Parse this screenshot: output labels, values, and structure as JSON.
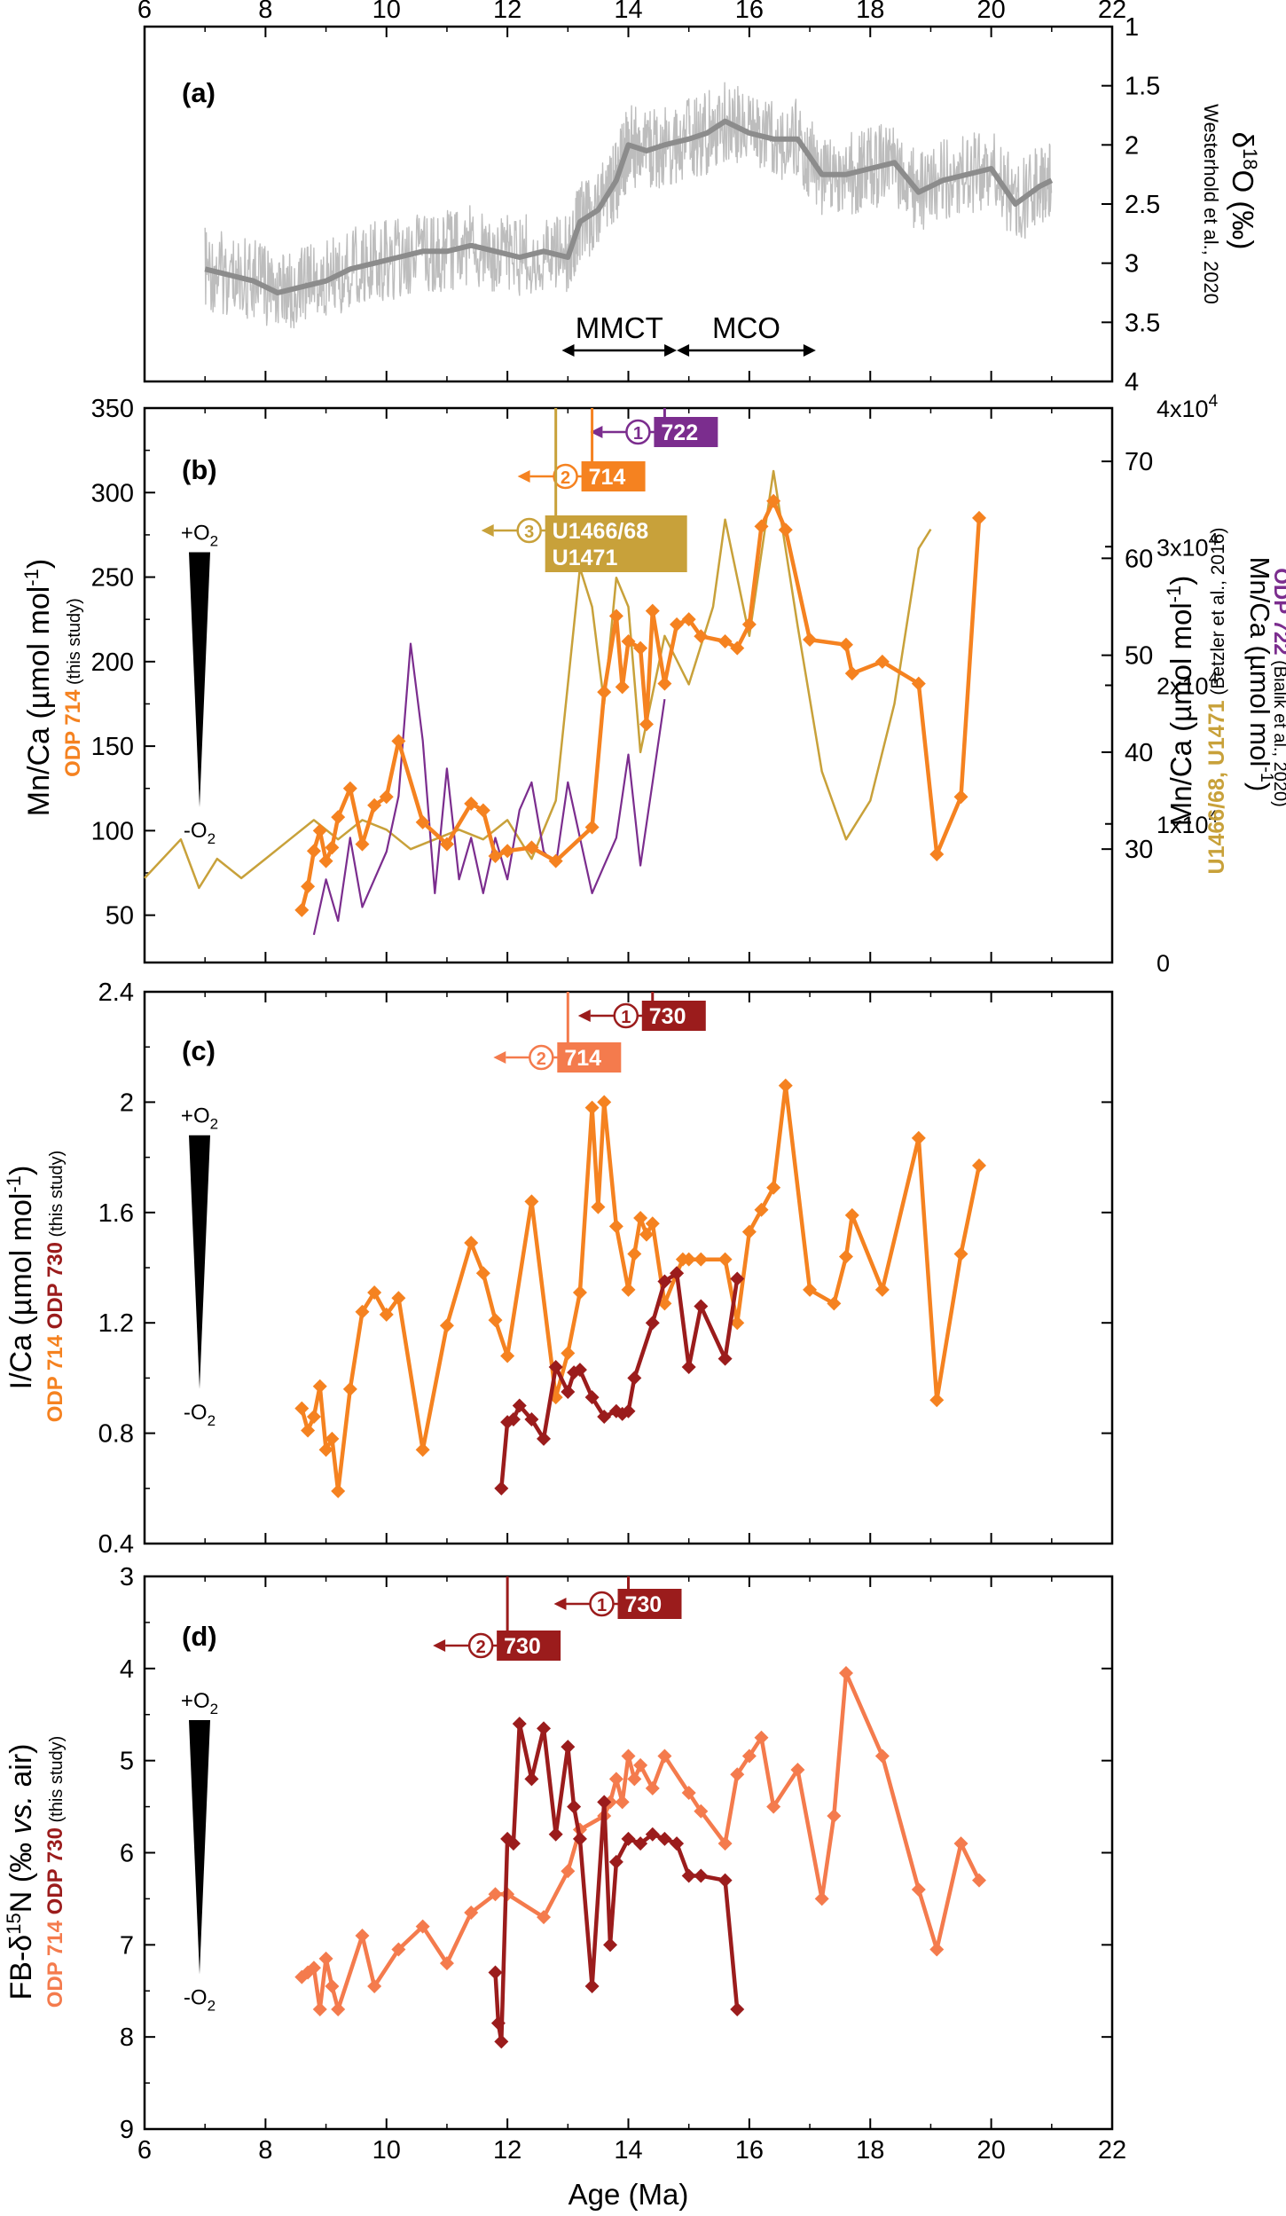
{
  "x_axis": {
    "label": "Age (Ma)",
    "range": [
      6,
      22
    ],
    "ticks": [
      6,
      8,
      10,
      12,
      14,
      16,
      18,
      20,
      22
    ],
    "tick_labels": [
      "6",
      "8",
      "10",
      "12",
      "14",
      "16",
      "18",
      "20",
      "22"
    ]
  },
  "colors": {
    "odp714": "#f58220",
    "odp714_light": "#f47b4d",
    "odp730": "#9b1c1c",
    "odp722": "#7b2d8e",
    "betzler": "#c8a13a",
    "d18o_raw": "#bdbdbd",
    "d18o_smooth": "#8c8c8c",
    "axis": "#000000"
  },
  "panels": {
    "a": {
      "letter": "(a)",
      "ylabel": "δ18O (‰)",
      "ylabel_source": "Westerhold et al., 2020",
      "ylim": [
        4,
        1
      ],
      "ticks": [
        "1",
        "1.5",
        "2",
        "2.5",
        "3",
        "3.5",
        "4"
      ],
      "events": [
        {
          "label": "MMCT",
          "from": 12.9,
          "to": 14.8
        },
        {
          "label": "MCO",
          "from": 14.8,
          "to": 17.1
        }
      ]
    },
    "b": {
      "letter": "(b)",
      "ylabel_left": "Mn/Ca (µmol mol-1)",
      "ylabel_left_site": "ODP 714",
      "ylabel_left_note": "(this study)",
      "ylabel_right1": "Mn/Ca (µmol mol-1)",
      "ylabel_right1_sites": "U1466/68, U1471",
      "ylabel_right1_note": "(Betzler et al., 2016)",
      "ylabel_right2": "Mn/Ca (µmol mol-1)",
      "ylabel_right2_site": "ODP 722",
      "ylabel_right2_note": "(Bialik et al., 2020)",
      "left_ticks": [
        "50",
        "100",
        "150",
        "200",
        "250",
        "300",
        "350"
      ],
      "right1_ticks": [
        "30",
        "40",
        "50",
        "60",
        "70"
      ],
      "right2_ticks": [
        "0",
        "1x10^4",
        "2x10^4",
        "3x10^4",
        "4x10^4"
      ],
      "wedge_top": "+O2",
      "wedge_bottom": "-O2",
      "markers": [
        {
          "num": "1",
          "label": "722",
          "age": 14.6
        },
        {
          "num": "2",
          "label": "714",
          "age": 13.4
        },
        {
          "num": "3",
          "label": "U1466/68",
          "label2": "U1471",
          "age": 12.8
        }
      ]
    },
    "c": {
      "letter": "(c)",
      "ylabel": "I/Ca (µmol mol-1)",
      "ylabel_sites": "ODP 714 ODP 730",
      "ylabel_note": "(this study)",
      "ticks": [
        "0.4",
        "0.8",
        "1.2",
        "1.6",
        "2",
        "2.4"
      ],
      "wedge_top": "+O2",
      "wedge_bottom": "-O2",
      "markers": [
        {
          "num": "1",
          "label": "730",
          "age": 14.4
        },
        {
          "num": "2",
          "label": "714",
          "age": 13.0
        }
      ]
    },
    "d": {
      "letter": "(d)",
      "ylabel": "FB-δ15N (‰ vs. air)",
      "ylabel_sites": "ODP 714 ODP 730",
      "ylabel_note": "(this study)",
      "ticks": [
        "3",
        "4",
        "5",
        "6",
        "7",
        "8",
        "9"
      ],
      "wedge_top": "+O2",
      "wedge_bottom": "-O2",
      "markers": [
        {
          "num": "1",
          "label": "730",
          "age": 14.0
        },
        {
          "num": "2",
          "label": "730",
          "age": 12.0
        }
      ]
    }
  },
  "chart_data": [
    {
      "panel": "a",
      "type": "line",
      "title": "",
      "xlabel": "Age (Ma)",
      "ylabel": "δ18O (‰)",
      "xlim": [
        6,
        22
      ],
      "ylim": [
        4,
        1
      ],
      "series": [
        {
          "name": "Westerhold et al., 2020",
          "x": [
            7.0,
            7.4,
            7.8,
            8.2,
            8.6,
            9.0,
            9.4,
            9.8,
            10.2,
            10.6,
            11.0,
            11.4,
            11.8,
            12.2,
            12.6,
            13.0,
            13.2,
            13.5,
            13.8,
            14.0,
            14.3,
            14.6,
            15.0,
            15.3,
            15.6,
            16.0,
            16.4,
            16.8,
            17.2,
            17.6,
            18.0,
            18.4,
            18.8,
            19.2,
            19.6,
            20.0,
            20.4,
            20.8,
            21.0
          ],
          "y": [
            3.05,
            3.1,
            3.15,
            3.25,
            3.2,
            3.15,
            3.05,
            3.0,
            2.95,
            2.9,
            2.9,
            2.85,
            2.9,
            2.95,
            2.9,
            2.95,
            2.65,
            2.55,
            2.3,
            2.0,
            2.05,
            2.0,
            1.95,
            1.9,
            1.8,
            1.9,
            1.95,
            1.95,
            2.25,
            2.25,
            2.2,
            2.15,
            2.4,
            2.3,
            2.25,
            2.2,
            2.5,
            2.35,
            2.3
          ]
        }
      ]
    },
    {
      "panel": "b",
      "type": "line",
      "title": "",
      "xlabel": "Age (Ma)",
      "ylabel": "Mn/Ca (µmol mol-1)",
      "xlim": [
        6,
        22
      ],
      "series": [
        {
          "name": "ODP 714",
          "x": [
            8.6,
            8.7,
            8.8,
            8.9,
            9.0,
            9.1,
            9.2,
            9.4,
            9.6,
            9.8,
            10.0,
            10.2,
            10.6,
            11.0,
            11.4,
            11.6,
            11.8,
            12.0,
            12.4,
            12.8,
            13.4,
            13.6,
            13.8,
            13.9,
            14.0,
            14.2,
            14.3,
            14.4,
            14.6,
            14.8,
            15.0,
            15.2,
            15.6,
            15.8,
            16.0,
            16.2,
            16.4,
            16.6,
            17.0,
            17.6,
            17.7,
            18.2,
            18.8,
            19.1,
            19.5,
            19.8
          ],
          "y": [
            53,
            67,
            88,
            100,
            82,
            90,
            108,
            125,
            92,
            115,
            120,
            153,
            105,
            92,
            116,
            112,
            85,
            88,
            90,
            82,
            102,
            182,
            227,
            185,
            212,
            208,
            163,
            230,
            187,
            222,
            225,
            215,
            212,
            208,
            222,
            280,
            295,
            278,
            213,
            210,
            193,
            200,
            187,
            86,
            120,
            285
          ],
          "axis": "left"
        },
        {
          "name": "U1466/68, U1471",
          "x": [
            6.0,
            6.6,
            6.9,
            7.2,
            7.6,
            8.0,
            8.4,
            8.8,
            9.2,
            9.6,
            10.0,
            10.4,
            10.8,
            11.2,
            11.6,
            12.0,
            12.4,
            12.8,
            13.2,
            13.4,
            13.6,
            13.8,
            14.0,
            14.2,
            14.6,
            15.0,
            15.4,
            15.6,
            16.0,
            16.4,
            16.8,
            17.2,
            17.6,
            18.0,
            18.4,
            18.8,
            19.0
          ],
          "y": [
            27,
            31,
            26,
            29,
            27,
            29,
            31,
            33,
            31,
            33,
            32,
            30,
            31,
            32,
            31,
            33,
            29,
            35,
            59,
            55,
            45,
            58,
            55,
            40,
            52,
            47,
            55,
            64,
            52,
            69,
            53,
            38,
            31,
            35,
            45,
            61,
            63
          ],
          "axis": "right1"
        },
        {
          "name": "ODP 722",
          "x": [
            8.8,
            9.0,
            9.2,
            9.4,
            9.6,
            9.8,
            10.0,
            10.2,
            10.4,
            10.6,
            10.8,
            11.0,
            11.2,
            11.4,
            11.6,
            11.8,
            12.0,
            12.2,
            12.4,
            12.6,
            12.8,
            13.0,
            13.2,
            13.4,
            13.6,
            13.8,
            14.0,
            14.2,
            14.4,
            14.6
          ],
          "y": [
            0.2,
            0.6,
            0.3,
            0.9,
            0.4,
            0.6,
            0.8,
            1.2,
            2.3,
            1.6,
            0.5,
            1.4,
            0.6,
            0.9,
            0.5,
            0.9,
            0.6,
            1.1,
            1.3,
            0.8,
            0.7,
            1.3,
            0.9,
            0.5,
            0.7,
            0.9,
            1.5,
            0.7,
            1.3,
            1.9
          ],
          "axis": "right2",
          "unit": "x10^4"
        }
      ]
    },
    {
      "panel": "c",
      "type": "line",
      "title": "",
      "xlabel": "Age (Ma)",
      "ylabel": "I/Ca (µmol mol-1)",
      "xlim": [
        6,
        22
      ],
      "ylim": [
        0.4,
        2.4
      ],
      "series": [
        {
          "name": "ODP 714",
          "x": [
            8.6,
            8.7,
            8.8,
            8.9,
            9.0,
            9.1,
            9.2,
            9.4,
            9.6,
            9.8,
            10.0,
            10.2,
            10.6,
            11.0,
            11.4,
            11.6,
            11.8,
            12.0,
            12.4,
            12.8,
            13.0,
            13.2,
            13.4,
            13.5,
            13.6,
            13.8,
            14.0,
            14.1,
            14.2,
            14.3,
            14.4,
            14.6,
            14.8,
            14.9,
            15.0,
            15.2,
            15.6,
            15.8,
            16.0,
            16.2,
            16.4,
            16.6,
            17.0,
            17.4,
            17.6,
            17.7,
            18.2,
            18.8,
            19.1,
            19.5,
            19.8
          ],
          "y": [
            0.89,
            0.81,
            0.86,
            0.97,
            0.74,
            0.78,
            0.59,
            0.96,
            1.24,
            1.31,
            1.23,
            1.29,
            0.74,
            1.19,
            1.49,
            1.38,
            1.21,
            1.08,
            1.64,
            0.93,
            1.09,
            1.31,
            1.98,
            1.62,
            2.0,
            1.55,
            1.32,
            1.45,
            1.58,
            1.52,
            1.56,
            1.27,
            1.38,
            1.43,
            1.43,
            1.43,
            1.43,
            1.2,
            1.53,
            1.61,
            1.69,
            2.06,
            1.32,
            1.27,
            1.44,
            1.59,
            1.32,
            1.87,
            0.92,
            1.45,
            1.77
          ],
          "axis": "left"
        },
        {
          "name": "ODP 730",
          "x": [
            11.9,
            12.0,
            12.1,
            12.2,
            12.4,
            12.6,
            12.8,
            13.0,
            13.1,
            13.2,
            13.4,
            13.6,
            13.8,
            13.9,
            14.0,
            14.1,
            14.4,
            14.6,
            14.8,
            15.0,
            15.2,
            15.6,
            15.8
          ],
          "y": [
            0.6,
            0.84,
            0.85,
            0.9,
            0.85,
            0.78,
            1.04,
            0.95,
            1.02,
            1.03,
            0.93,
            0.86,
            0.88,
            0.87,
            0.88,
            1.0,
            1.2,
            1.35,
            1.38,
            1.04,
            1.26,
            1.07,
            1.36
          ],
          "axis": "left"
        }
      ]
    },
    {
      "panel": "d",
      "type": "line",
      "title": "",
      "xlabel": "Age (Ma)",
      "ylabel": "FB-δ15N (‰ vs. air)",
      "xlim": [
        6,
        22
      ],
      "ylim": [
        9,
        3
      ],
      "series": [
        {
          "name": "ODP 714",
          "x": [
            8.6,
            8.7,
            8.8,
            8.9,
            9.0,
            9.1,
            9.2,
            9.6,
            9.8,
            10.2,
            10.6,
            11.0,
            11.4,
            11.8,
            12.0,
            12.6,
            13.0,
            13.2,
            13.6,
            13.7,
            13.8,
            13.9,
            14.0,
            14.1,
            14.2,
            14.4,
            14.6,
            15.0,
            15.2,
            15.6,
            15.8,
            16.0,
            16.2,
            16.4,
            16.8,
            17.2,
            17.4,
            17.6,
            18.2,
            18.8,
            19.1,
            19.5,
            19.8
          ],
          "y": [
            7.35,
            7.3,
            7.25,
            7.7,
            7.15,
            7.45,
            7.7,
            6.9,
            7.45,
            7.05,
            6.8,
            7.2,
            6.65,
            6.45,
            6.45,
            6.7,
            6.2,
            5.75,
            5.6,
            5.45,
            5.2,
            5.45,
            4.95,
            5.2,
            5.05,
            5.3,
            4.95,
            5.35,
            5.55,
            5.9,
            5.15,
            4.95,
            4.75,
            5.5,
            5.1,
            6.5,
            5.6,
            4.05,
            4.95,
            6.4,
            7.05,
            5.9,
            6.3
          ],
          "axis": "left"
        },
        {
          "name": "ODP 730",
          "x": [
            11.8,
            11.85,
            11.9,
            12.0,
            12.1,
            12.2,
            12.4,
            12.6,
            12.8,
            13.0,
            13.1,
            13.2,
            13.4,
            13.6,
            13.7,
            13.8,
            14.0,
            14.2,
            14.4,
            14.6,
            14.8,
            15.0,
            15.2,
            15.6,
            15.8
          ],
          "y": [
            7.3,
            7.85,
            8.05,
            5.85,
            5.9,
            4.6,
            5.2,
            4.65,
            5.8,
            4.85,
            5.5,
            5.85,
            7.45,
            5.45,
            7.0,
            6.1,
            5.85,
            5.9,
            5.8,
            5.85,
            5.9,
            6.25,
            6.25,
            6.3,
            7.7
          ],
          "axis": "left"
        }
      ]
    }
  ]
}
